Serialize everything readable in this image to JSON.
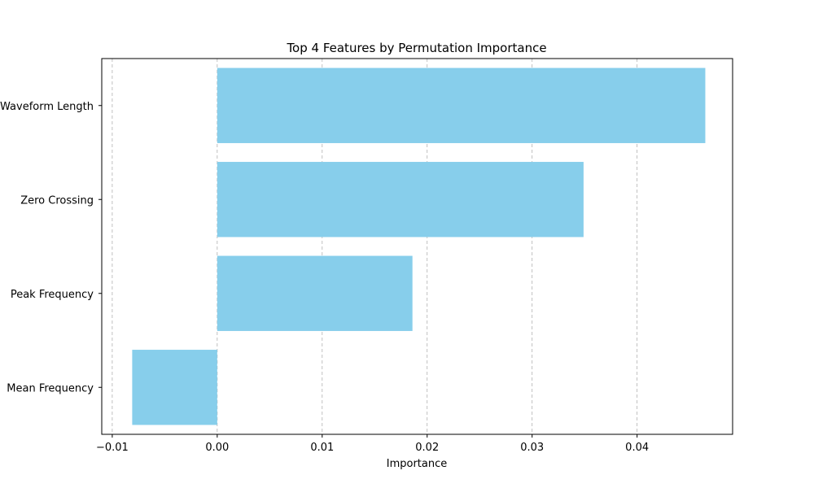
{
  "chart_data": {
    "type": "bar",
    "orientation": "horizontal",
    "title": "Top 4 Features by Permutation Importance",
    "xlabel": "Importance",
    "ylabel": "",
    "categories": [
      "Waveform Length",
      "Zero Crossing",
      "Peak Frequency",
      "Mean Frequency"
    ],
    "values": [
      0.0465,
      0.0349,
      0.0186,
      -0.0081
    ],
    "xlim": [
      -0.011,
      0.0491
    ],
    "xticks": [
      -0.01,
      0.0,
      0.01,
      0.02,
      0.03,
      0.04
    ],
    "xtick_labels": [
      "−0.01",
      "0.00",
      "0.01",
      "0.02",
      "0.03",
      "0.04"
    ],
    "grid": "x, dashed",
    "bar_color": "#87ceeb",
    "grid_color": "#b0b0b0"
  }
}
